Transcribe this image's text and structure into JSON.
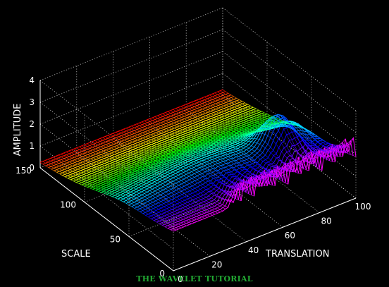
{
  "chart_data": {
    "type": "surface",
    "title": "",
    "xlabel": "TRANSLATION",
    "ylabel": "SCALE",
    "zlabel": "AMPLITUDE",
    "xlim": [
      0,
      100
    ],
    "ylim": [
      0,
      150
    ],
    "zlim": [
      0,
      4
    ],
    "x_ticks": [
      "0",
      "20",
      "40",
      "60",
      "80",
      "100"
    ],
    "y_ticks": [
      "0",
      "50",
      "100",
      "150"
    ],
    "z_ticks": [
      "0",
      "1",
      "2",
      "3",
      "4"
    ],
    "grid": true,
    "colormap": "hsv (red low amplitude / large scale, through yellow, green, cyan, blue, magenta at small scale)"
  },
  "footer": {
    "text": "THE WAVELET TUTORIAL"
  },
  "colors": {
    "background": "#000000",
    "text": "#ffffff",
    "footer": "#22aa33",
    "grid": "#cfcfcf"
  }
}
